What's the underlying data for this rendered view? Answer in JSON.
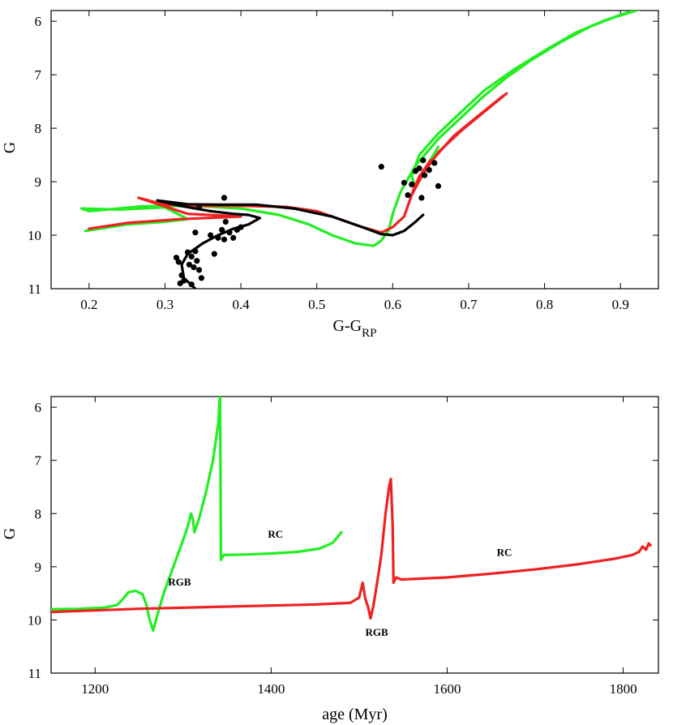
{
  "chart_data": [
    {
      "type": "line",
      "xlabel": "G-G",
      "xlabel_sub": "RP",
      "ylabel": "G",
      "xlim": [
        0.15,
        0.95
      ],
      "ylim": [
        11,
        5.8
      ],
      "y_inverted": true,
      "xticks": [
        0.2,
        0.3,
        0.4,
        0.5,
        0.6,
        0.7,
        0.8,
        0.9
      ],
      "xtick_labels": [
        "0.2",
        "0.3",
        "0.4",
        "0.5",
        "0.6",
        "0.7",
        "0.8",
        "0.9"
      ],
      "yticks": [
        6,
        7,
        8,
        9,
        10,
        11
      ],
      "ytick_labels": [
        "6",
        "7",
        "8",
        "9",
        "10",
        "11"
      ],
      "grid": false,
      "series": [
        {
          "kind": "line",
          "color": "#22ee22",
          "points": [
            [
              0.93,
              5.75
            ],
            [
              0.9,
              5.88
            ],
            [
              0.86,
              6.1
            ],
            [
              0.82,
              6.4
            ],
            [
              0.78,
              6.75
            ],
            [
              0.75,
              7.05
            ],
            [
              0.72,
              7.4
            ],
            [
              0.69,
              7.8
            ],
            [
              0.66,
              8.2
            ],
            [
              0.63,
              8.7
            ],
            [
              0.61,
              9.2
            ],
            [
              0.6,
              9.6
            ],
            [
              0.595,
              9.9
            ],
            [
              0.585,
              10.1
            ],
            [
              0.575,
              10.2
            ],
            [
              0.55,
              10.15
            ],
            [
              0.52,
              10.0
            ],
            [
              0.49,
              9.8
            ],
            [
              0.45,
              9.62
            ],
            [
              0.4,
              9.5
            ],
            [
              0.34,
              9.45
            ],
            [
              0.27,
              9.46
            ],
            [
              0.2,
              9.55
            ],
            [
              0.19,
              9.5
            ],
            [
              0.24,
              9.52
            ],
            [
              0.3,
              9.48
            ],
            [
              0.33,
              9.7
            ],
            [
              0.3,
              9.75
            ],
            [
              0.25,
              9.8
            ],
            [
              0.195,
              9.92
            ]
          ]
        },
        {
          "kind": "line",
          "color": "#22ee22",
          "points": [
            [
              0.925,
              5.78
            ],
            [
              0.88,
              5.98
            ],
            [
              0.84,
              6.22
            ],
            [
              0.8,
              6.55
            ],
            [
              0.76,
              6.9
            ],
            [
              0.72,
              7.3
            ],
            [
              0.69,
              7.7
            ],
            [
              0.66,
              8.1
            ],
            [
              0.635,
              8.5
            ],
            [
              0.625,
              8.9
            ],
            [
              0.63,
              9.1
            ],
            [
              0.645,
              8.7
            ],
            [
              0.66,
              8.35
            ]
          ]
        },
        {
          "kind": "line",
          "color": "#ee2222",
          "points": [
            [
              0.75,
              7.35
            ],
            [
              0.72,
              7.7
            ],
            [
              0.69,
              8.05
            ],
            [
              0.66,
              8.45
            ],
            [
              0.64,
              8.85
            ],
            [
              0.625,
              9.25
            ],
            [
              0.62,
              9.45
            ],
            [
              0.615,
              9.65
            ],
            [
              0.6,
              9.85
            ],
            [
              0.585,
              9.95
            ],
            [
              0.56,
              9.85
            ],
            [
              0.53,
              9.7
            ],
            [
              0.5,
              9.55
            ],
            [
              0.46,
              9.47
            ],
            [
              0.4,
              9.45
            ],
            [
              0.34,
              9.45
            ],
            [
              0.3,
              9.43
            ],
            [
              0.265,
              9.3
            ],
            [
              0.33,
              9.6
            ],
            [
              0.4,
              9.65
            ],
            [
              0.32,
              9.7
            ],
            [
              0.25,
              9.77
            ],
            [
              0.2,
              9.88
            ]
          ]
        },
        {
          "kind": "line",
          "color": "#ee2222",
          "points": [
            [
              0.745,
              7.4
            ],
            [
              0.71,
              7.8
            ],
            [
              0.68,
              8.15
            ],
            [
              0.655,
              8.55
            ],
            [
              0.635,
              8.9
            ],
            [
              0.625,
              9.25
            ],
            [
              0.63,
              9.05
            ],
            [
              0.64,
              8.8
            ],
            [
              0.65,
              8.6
            ]
          ]
        },
        {
          "kind": "line",
          "color": "#000000",
          "points": [
            [
              0.34,
              11.0
            ],
            [
              0.325,
              10.8
            ],
            [
              0.322,
              10.55
            ],
            [
              0.33,
              10.35
            ],
            [
              0.35,
              10.15
            ],
            [
              0.37,
              10.0
            ],
            [
              0.39,
              9.88
            ],
            [
              0.41,
              9.8
            ],
            [
              0.425,
              9.68
            ],
            [
              0.41,
              9.62
            ],
            [
              0.39,
              9.6
            ],
            [
              0.36,
              9.55
            ],
            [
              0.32,
              9.45
            ],
            [
              0.29,
              9.35
            ],
            [
              0.33,
              9.42
            ],
            [
              0.37,
              9.43
            ],
            [
              0.42,
              9.43
            ],
            [
              0.47,
              9.5
            ],
            [
              0.52,
              9.65
            ],
            [
              0.56,
              9.85
            ],
            [
              0.585,
              9.98
            ],
            [
              0.6,
              10.0
            ],
            [
              0.615,
              9.92
            ],
            [
              0.63,
              9.75
            ],
            [
              0.64,
              9.62
            ]
          ]
        },
        {
          "kind": "scatter",
          "color": "#000000",
          "points": [
            [
              0.315,
              10.42
            ],
            [
              0.318,
              10.5
            ],
            [
              0.322,
              10.75
            ],
            [
              0.325,
              10.85
            ],
            [
              0.33,
              10.32
            ],
            [
              0.332,
              10.55
            ],
            [
              0.335,
              10.4
            ],
            [
              0.338,
              10.6
            ],
            [
              0.34,
              10.3
            ],
            [
              0.342,
              10.48
            ],
            [
              0.345,
              10.65
            ],
            [
              0.348,
              10.8
            ],
            [
              0.32,
              10.9
            ],
            [
              0.335,
              10.92
            ],
            [
              0.34,
              9.95
            ],
            [
              0.36,
              10.0
            ],
            [
              0.365,
              10.35
            ],
            [
              0.37,
              10.05
            ],
            [
              0.375,
              9.9
            ],
            [
              0.378,
              10.08
            ],
            [
              0.38,
              9.75
            ],
            [
              0.385,
              9.95
            ],
            [
              0.39,
              10.05
            ],
            [
              0.395,
              9.9
            ],
            [
              0.4,
              9.85
            ],
            [
              0.378,
              9.3
            ],
            [
              0.345,
              9.48
            ],
            [
              0.585,
              8.72
            ],
            [
              0.615,
              9.02
            ],
            [
              0.62,
              9.25
            ],
            [
              0.625,
              9.05
            ],
            [
              0.63,
              8.8
            ],
            [
              0.635,
              8.75
            ],
            [
              0.64,
              8.6
            ],
            [
              0.642,
              8.88
            ],
            [
              0.648,
              8.78
            ],
            [
              0.655,
              8.65
            ],
            [
              0.66,
              9.08
            ],
            [
              0.638,
              9.3
            ]
          ]
        }
      ]
    },
    {
      "type": "line",
      "xlabel": "age (Myr)",
      "ylabel": "G",
      "xlim": [
        1150,
        1840
      ],
      "ylim": [
        11,
        5.8
      ],
      "y_inverted": true,
      "xticks": [
        1200,
        1400,
        1600,
        1800
      ],
      "xtick_labels": [
        "1200",
        "1400",
        "1600",
        "1800"
      ],
      "yticks": [
        6,
        7,
        8,
        9,
        10,
        11
      ],
      "ytick_labels": [
        "6",
        "7",
        "8",
        "9",
        "10",
        "11"
      ],
      "grid": false,
      "annotations": [
        {
          "text": "RGB",
          "x": 1296,
          "y": 9.35
        },
        {
          "text": "RC",
          "x": 1405,
          "y": 8.45
        },
        {
          "text": "RGB",
          "x": 1520,
          "y": 10.3
        },
        {
          "text": "RC",
          "x": 1665,
          "y": 8.8
        }
      ],
      "series": [
        {
          "kind": "line",
          "color": "#22ee22",
          "points": [
            [
              1150,
              9.8
            ],
            [
              1180,
              9.79
            ],
            [
              1210,
              9.77
            ],
            [
              1225,
              9.72
            ],
            [
              1232,
              9.6
            ],
            [
              1238,
              9.48
            ],
            [
              1246,
              9.45
            ],
            [
              1254,
              9.52
            ],
            [
              1258,
              9.7
            ],
            [
              1262,
              10.0
            ],
            [
              1266,
              10.2
            ],
            [
              1270,
              9.95
            ],
            [
              1278,
              9.5
            ],
            [
              1290,
              8.95
            ],
            [
              1300,
              8.5
            ],
            [
              1305,
              8.25
            ],
            [
              1309,
              8.0
            ],
            [
              1311,
              8.1
            ],
            [
              1313,
              8.35
            ],
            [
              1318,
              8.1
            ],
            [
              1326,
              7.6
            ],
            [
              1334,
              7.0
            ],
            [
              1340,
              6.3
            ],
            [
              1342,
              5.75
            ],
            [
              1343,
              8.87
            ],
            [
              1346,
              8.78
            ],
            [
              1370,
              8.77
            ],
            [
              1400,
              8.75
            ],
            [
              1430,
              8.72
            ],
            [
              1455,
              8.66
            ],
            [
              1470,
              8.55
            ],
            [
              1480,
              8.35
            ]
          ]
        },
        {
          "kind": "line",
          "color": "#ee2222",
          "points": [
            [
              1150,
              9.85
            ],
            [
              1250,
              9.79
            ],
            [
              1350,
              9.75
            ],
            [
              1450,
              9.71
            ],
            [
              1490,
              9.68
            ],
            [
              1500,
              9.58
            ],
            [
              1504,
              9.3
            ],
            [
              1507,
              9.6
            ],
            [
              1510,
              9.75
            ],
            [
              1513,
              9.97
            ],
            [
              1516,
              9.75
            ],
            [
              1520,
              9.35
            ],
            [
              1525,
              8.8
            ],
            [
              1530,
              8.0
            ],
            [
              1534,
              7.5
            ],
            [
              1536,
              7.35
            ],
            [
              1538,
              8.2
            ],
            [
              1539,
              9.3
            ],
            [
              1542,
              9.2
            ],
            [
              1548,
              9.24
            ],
            [
              1600,
              9.2
            ],
            [
              1650,
              9.13
            ],
            [
              1700,
              9.05
            ],
            [
              1750,
              8.95
            ],
            [
              1790,
              8.85
            ],
            [
              1810,
              8.78
            ],
            [
              1818,
              8.72
            ],
            [
              1822,
              8.62
            ],
            [
              1826,
              8.68
            ],
            [
              1829,
              8.56
            ],
            [
              1831,
              8.6
            ]
          ]
        }
      ]
    }
  ]
}
